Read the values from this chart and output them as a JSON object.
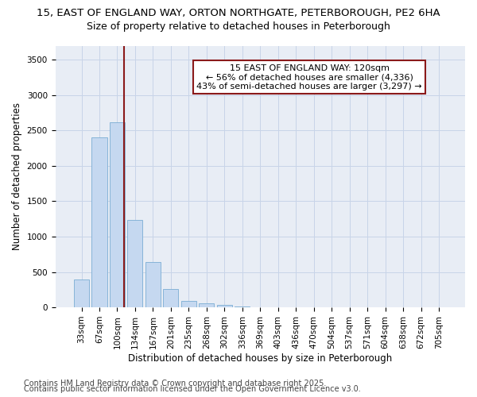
{
  "title1": "15, EAST OF ENGLAND WAY, ORTON NORTHGATE, PETERBOROUGH, PE2 6HA",
  "title2": "Size of property relative to detached houses in Peterborough",
  "xlabel": "Distribution of detached houses by size in Peterborough",
  "ylabel": "Number of detached properties",
  "categories": [
    "33sqm",
    "67sqm",
    "100sqm",
    "134sqm",
    "167sqm",
    "201sqm",
    "235sqm",
    "268sqm",
    "302sqm",
    "336sqm",
    "369sqm",
    "403sqm",
    "436sqm",
    "470sqm",
    "504sqm",
    "537sqm",
    "571sqm",
    "604sqm",
    "638sqm",
    "672sqm",
    "705sqm"
  ],
  "values": [
    390,
    2400,
    2620,
    1240,
    640,
    260,
    90,
    55,
    35,
    10,
    0,
    0,
    0,
    0,
    0,
    0,
    0,
    0,
    0,
    0,
    0
  ],
  "bar_color": "#c5d8f0",
  "bar_edgecolor": "#7aadd4",
  "vline_x": 2.4,
  "vline_color": "#8b1a1a",
  "annotation_line1": "15 EAST OF ENGLAND WAY: 120sqm",
  "annotation_line2": "← 56% of detached houses are smaller (4,336)",
  "annotation_line3": "43% of semi-detached houses are larger (3,297) →",
  "annotation_box_color": "#ffffff",
  "annotation_box_edgecolor": "#8b1a1a",
  "ylim": [
    0,
    3700
  ],
  "yticks": [
    0,
    500,
    1000,
    1500,
    2000,
    2500,
    3000,
    3500
  ],
  "grid_color": "#c8d4e8",
  "background_color": "#e8edf5",
  "footer1": "Contains HM Land Registry data © Crown copyright and database right 2025.",
  "footer2": "Contains public sector information licensed under the Open Government Licence v3.0.",
  "title_fontsize": 9.5,
  "subtitle_fontsize": 9,
  "axis_label_fontsize": 8.5,
  "tick_fontsize": 7.5,
  "annotation_fontsize": 8,
  "footer_fontsize": 7
}
